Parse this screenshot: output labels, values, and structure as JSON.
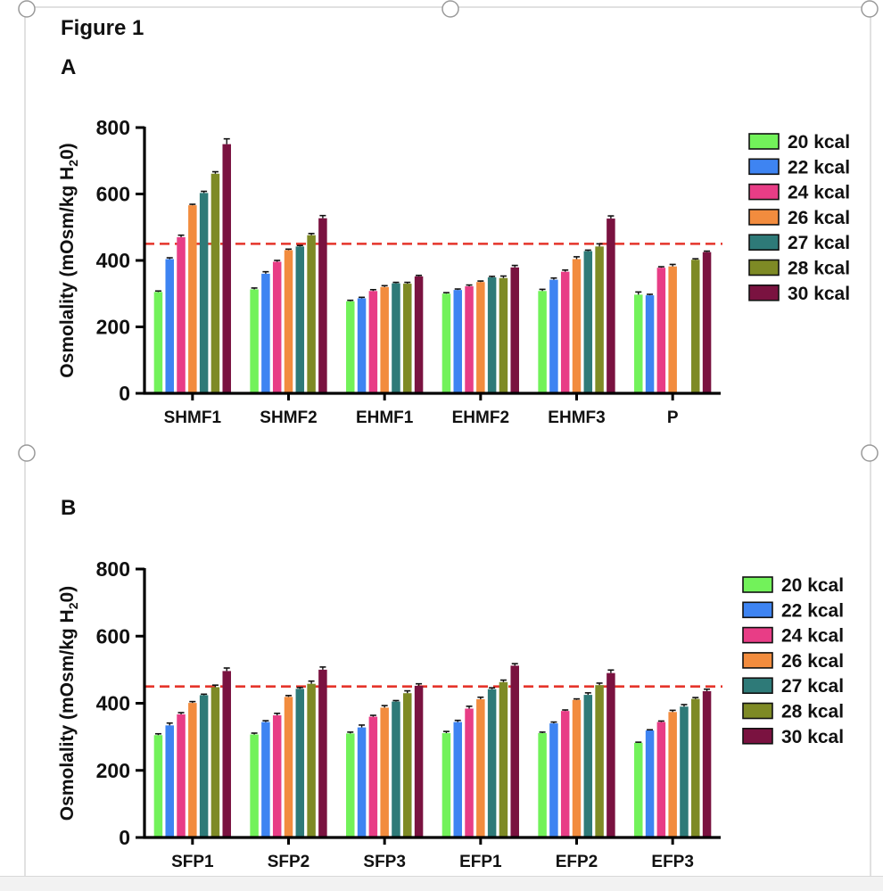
{
  "figure": {
    "title": "Figure 1"
  },
  "colors": {
    "20 kcal": "#72f25a",
    "22 kcal": "#3e84f2",
    "24 kcal": "#e83d86",
    "26 kcal": "#f28c3e",
    "27 kcal": "#2e7a78",
    "28 kcal": "#7e8a25",
    "30 kcal": "#7a1240",
    "threshold": "#e5342a"
  },
  "chart_data": [
    {
      "panel": "A",
      "type": "bar",
      "ylabel": "Osmolality (mOsm/kg H20)",
      "ylim": [
        0,
        800
      ],
      "yticks": [
        "0",
        "200",
        "400",
        "600",
        "800"
      ],
      "threshold": 450,
      "legend_position": "right",
      "categories": [
        "SHMF1",
        "SHMF2",
        "EHMF1",
        "EHMF2",
        "EHMF3",
        "P"
      ],
      "series": [
        {
          "name": "20 kcal",
          "values": [
            305,
            313,
            277,
            300,
            308,
            297
          ],
          "errors": [
            3,
            4,
            3,
            3,
            5,
            8
          ]
        },
        {
          "name": "22 kcal",
          "values": [
            404,
            360,
            286,
            311,
            342,
            295
          ],
          "errors": [
            4,
            6,
            3,
            3,
            5,
            3
          ]
        },
        {
          "name": "24 kcal",
          "values": [
            470,
            396,
            308,
            322,
            366,
            378
          ],
          "errors": [
            6,
            4,
            4,
            4,
            5,
            3
          ]
        },
        {
          "name": "26 kcal",
          "values": [
            566,
            431,
            320,
            335,
            404,
            382
          ],
          "errors": [
            3,
            3,
            4,
            3,
            7,
            6
          ]
        },
        {
          "name": "27 kcal",
          "values": [
            603,
            442,
            331,
            349,
            428,
            null
          ],
          "errors": [
            5,
            3,
            3,
            3,
            3,
            null
          ]
        },
        {
          "name": "28 kcal",
          "values": [
            661,
            476,
            330,
            347,
            442,
            402
          ],
          "errors": [
            6,
            5,
            4,
            6,
            8,
            3
          ]
        },
        {
          "name": "30 kcal",
          "values": [
            750,
            527,
            352,
            379,
            526,
            425
          ],
          "errors": [
            16,
            8,
            3,
            6,
            8,
            3
          ]
        }
      ]
    },
    {
      "panel": "B",
      "type": "bar",
      "ylabel": "Osmolality (mOsm/kg H20)",
      "ylim": [
        0,
        800
      ],
      "yticks": [
        "0",
        "200",
        "400",
        "600",
        "800"
      ],
      "threshold": 450,
      "legend_position": "right",
      "categories": [
        "SFP1",
        "SFP2",
        "SFP3",
        "EFP1",
        "EFP2",
        "EFP3"
      ],
      "series": [
        {
          "name": "20 kcal",
          "values": [
            305,
            307,
            310,
            311,
            311,
            282
          ],
          "errors": [
            4,
            4,
            4,
            5,
            3,
            2
          ]
        },
        {
          "name": "22 kcal",
          "values": [
            334,
            344,
            328,
            344,
            340,
            319
          ],
          "errors": [
            7,
            4,
            7,
            5,
            4,
            2
          ]
        },
        {
          "name": "24 kcal",
          "values": [
            367,
            364,
            360,
            384,
            377,
            344
          ],
          "errors": [
            5,
            6,
            4,
            7,
            3,
            3
          ]
        },
        {
          "name": "26 kcal",
          "values": [
            401,
            419,
            387,
            412,
            410,
            374
          ],
          "errors": [
            4,
            4,
            6,
            6,
            3,
            5
          ]
        },
        {
          "name": "27 kcal",
          "values": [
            424,
            443,
            405,
            442,
            425,
            390
          ],
          "errors": [
            3,
            4,
            3,
            4,
            6,
            6
          ]
        },
        {
          "name": "28 kcal",
          "values": [
            448,
            458,
            430,
            463,
            454,
            413
          ],
          "errors": [
            6,
            8,
            7,
            6,
            6,
            4
          ]
        },
        {
          "name": "30 kcal",
          "values": [
            496,
            500,
            452,
            512,
            490,
            436
          ],
          "errors": [
            9,
            8,
            6,
            6,
            9,
            6
          ]
        }
      ]
    }
  ]
}
